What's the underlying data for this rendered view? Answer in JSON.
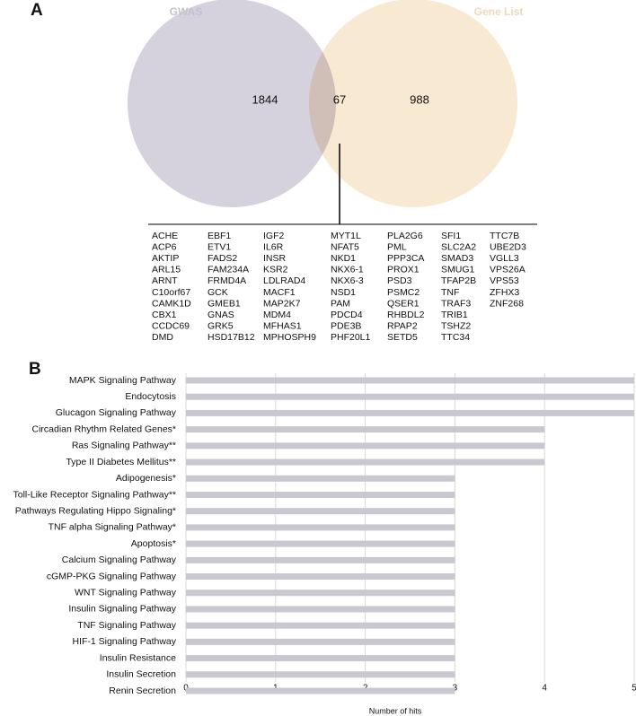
{
  "chart_data": [
    {
      "type": "venn",
      "panel_label": "A",
      "sets": [
        {
          "name": "GWAS",
          "color": "#d5d1dd"
        },
        {
          "name": "Gene List",
          "color": "#f6e1c4"
        }
      ],
      "counts": [
        1844,
        67,
        988
      ],
      "genes": [
        [
          "ACHE",
          "ACP6",
          "AKTIP",
          "ARL15",
          "ARNT",
          "C10orf67",
          "CAMK1D",
          "CBX1",
          "CCDC69",
          "DMD"
        ],
        [
          "EBF1",
          "ETV1",
          "FADS2",
          "FAM234A",
          "FRMD4A",
          "GCK",
          "GMEB1",
          "GNAS",
          "GRK5",
          "HSD17B12"
        ],
        [
          "IGF2",
          "IL6R",
          "INSR",
          "KSR2",
          "LDLRAD4",
          "MACF1",
          "MAP2K7",
          "MDM4",
          "MFHAS1",
          "MPHOSPH9"
        ],
        [
          "MYT1L",
          "NFAT5",
          "NKD1",
          "NKX6-1",
          "NKX6-3",
          "NSD1",
          "PAM",
          "PDCD4",
          "PDE3B",
          "PHF20L1"
        ],
        [
          "PLA2G6",
          "PML",
          "PPP3CA",
          "PROX1",
          "PSD3",
          "PSMC2",
          "QSER1",
          "RHBDL2",
          "RPAP2",
          "SETD5"
        ],
        [
          "SFI1",
          "SLC2A2",
          "SMAD3",
          "SMUG1",
          "TFAP2B",
          "TNF",
          "TRAF3",
          "TRIB1",
          "TSHZ2",
          "TTC34"
        ],
        [
          "TTC7B",
          "UBE2D3",
          "VGLL3",
          "VPS26A",
          "VPS53",
          "ZFHX3",
          "ZNF268"
        ]
      ]
    },
    {
      "type": "bar",
      "panel_label": "B",
      "orientation": "horizontal",
      "categories": [
        "MAPK Signaling Pathway",
        "Endocytosis",
        "Glucagon Signaling Pathway",
        "Circadian Rhythm Related Genes*",
        "Ras Signaling Pathway**",
        "Type II Diabetes Mellitus**",
        "Adipogenesis*",
        "Toll-Like Receptor Signaling Pathway**",
        "Pathways Regulating Hippo Signaling*",
        "TNF alpha Signaling Pathway*",
        "Apoptosis*",
        "Calcium Signaling Pathway",
        "cGMP-PKG Signaling Pathway",
        "WNT Signaling Pathway",
        "Insulin Signaling Pathway",
        "TNF Signaling Pathway",
        "HIF-1 Signaling Pathway",
        "Insulin Resistance",
        "Insulin Secretion",
        "Renin Secretion"
      ],
      "values": [
        5,
        5,
        5,
        4,
        4,
        4,
        3,
        3,
        3,
        3,
        3,
        3,
        3,
        3,
        3,
        3,
        3,
        3,
        3,
        3
      ],
      "color": "#c9c7d0",
      "xlim": [
        0,
        5
      ],
      "xticks": [
        0,
        1,
        2,
        3,
        4,
        5
      ],
      "xlabel": "Number of hits",
      "grid": true
    }
  ]
}
